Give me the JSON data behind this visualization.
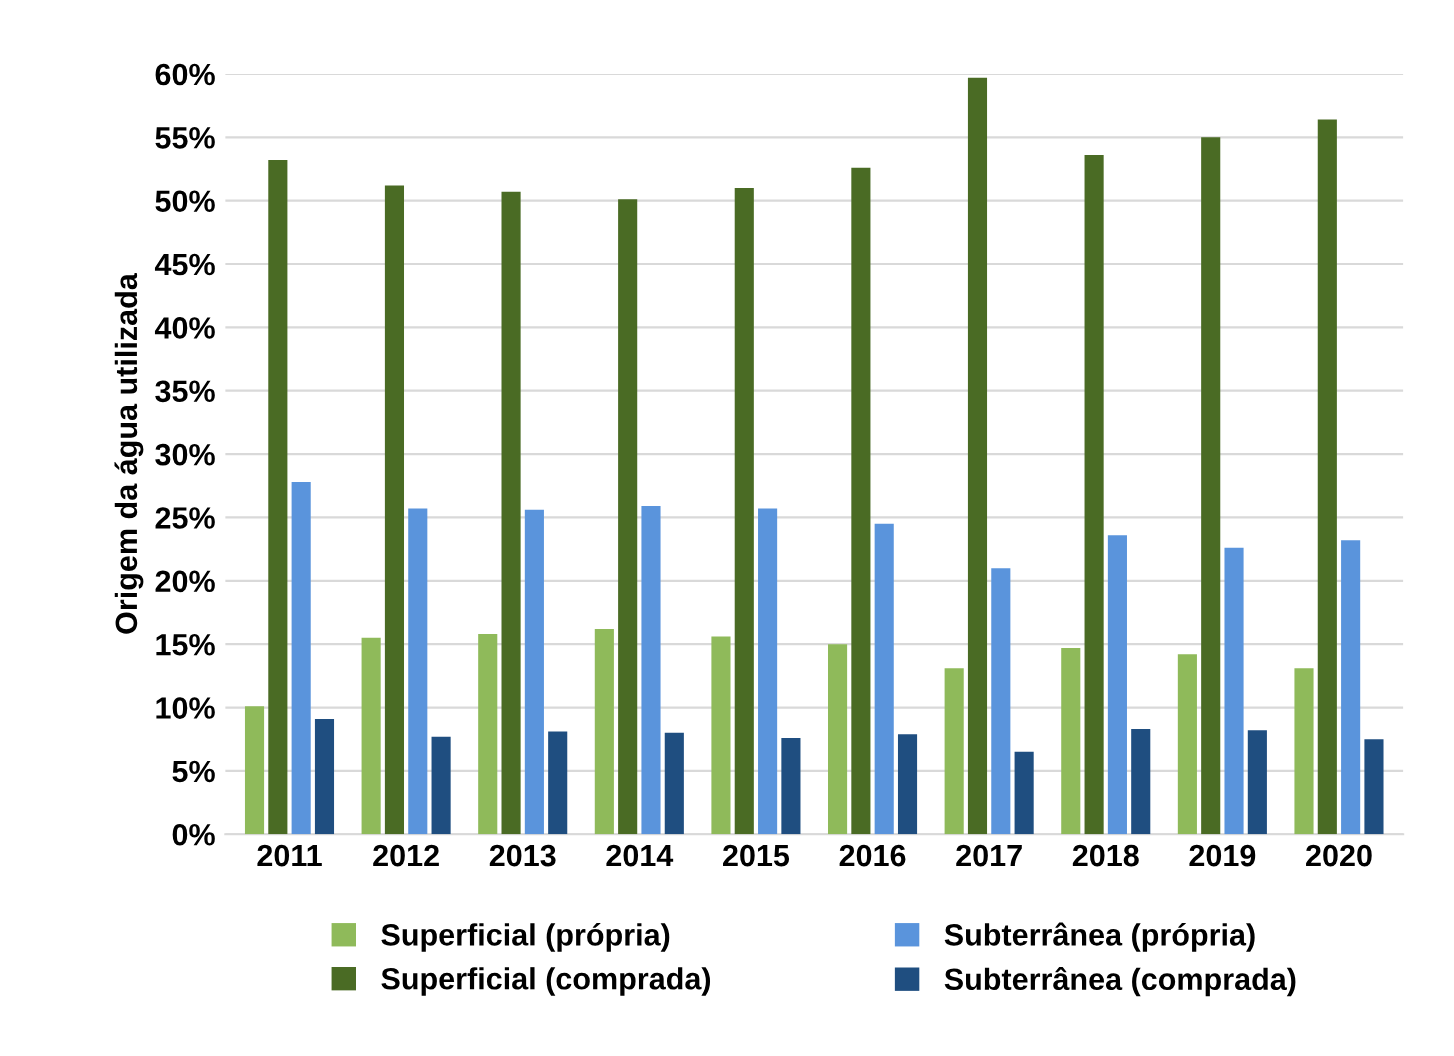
{
  "chart_data": {
    "type": "bar",
    "ylabel": "Origem da água utilizada",
    "categories": [
      "2011",
      "2012",
      "2013",
      "2014",
      "2015",
      "2016",
      "2017",
      "2018",
      "2019",
      "2020"
    ],
    "series": [
      {
        "name": "Superficial (própria)",
        "color": "#8fba5a",
        "values": [
          10.1,
          15.5,
          15.8,
          16.2,
          15.6,
          15.0,
          13.1,
          14.7,
          14.2,
          13.1
        ]
      },
      {
        "name": "Superficial (comprada)",
        "color": "#4a6b24",
        "values": [
          53.2,
          51.2,
          50.7,
          50.1,
          51.0,
          52.6,
          59.7,
          53.6,
          55.0,
          56.4
        ]
      },
      {
        "name": "Subterrânea (própria)",
        "color": "#5a94dc",
        "values": [
          27.8,
          25.7,
          25.6,
          25.9,
          25.7,
          24.5,
          21.0,
          23.6,
          22.6,
          23.2
        ]
      },
      {
        "name": "Subterrânea (comprada)",
        "color": "#1f4e80",
        "values": [
          9.1,
          7.7,
          8.1,
          8.0,
          7.6,
          7.9,
          6.5,
          8.3,
          8.2,
          7.5
        ]
      }
    ],
    "ylim": [
      0,
      60
    ],
    "yticks": [
      {
        "value": 0,
        "label": "0%"
      },
      {
        "value": 5,
        "label": "5%"
      },
      {
        "value": 10,
        "label": "10%"
      },
      {
        "value": 15,
        "label": "15%"
      },
      {
        "value": 20,
        "label": "20%"
      },
      {
        "value": 25,
        "label": "25%"
      },
      {
        "value": 30,
        "label": "30%"
      },
      {
        "value": 35,
        "label": "35%"
      },
      {
        "value": 40,
        "label": "40%"
      },
      {
        "value": 45,
        "label": "45%"
      },
      {
        "value": 50,
        "label": "50%"
      },
      {
        "value": 55,
        "label": "55%"
      },
      {
        "value": 60,
        "label": "60%"
      }
    ],
    "grid": "y",
    "legend": "bottom"
  }
}
